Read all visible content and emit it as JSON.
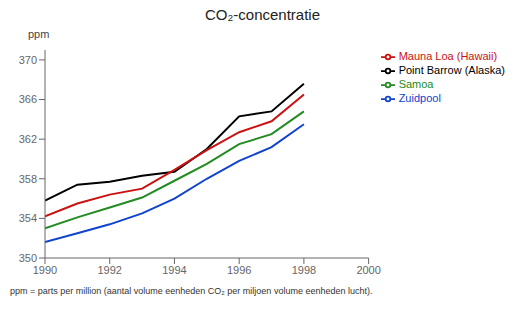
{
  "chart_data": {
    "type": "line",
    "title": "CO₂-concentratie",
    "ylabel": "ppm",
    "annotations": [
      "ppm = parts per million (aantal volume eenheden CO₂ per miljoen volume eenheden lucht)."
    ],
    "x": [
      1990,
      1991,
      1992,
      1993,
      1994,
      1995,
      1996,
      1997,
      1998
    ],
    "xlim": [
      1990,
      2000
    ],
    "xticks": [
      1990,
      1992,
      1994,
      1996,
      1998,
      2000
    ],
    "ylim": [
      350,
      371
    ],
    "yticks": [
      350,
      354,
      358,
      362,
      366,
      370
    ],
    "grid": false,
    "legend": "right",
    "series": [
      {
        "name": "Point Barrow (Alaska)",
        "color": "#000000",
        "values": [
          355.8,
          357.4,
          357.7,
          358.3,
          358.7,
          361.0,
          364.3,
          364.8,
          367.6
        ]
      },
      {
        "name": "Mauna Loa (Hawaii)",
        "color": "#cc1111",
        "values": [
          354.2,
          355.5,
          356.4,
          357.0,
          358.9,
          360.9,
          362.7,
          363.8,
          366.5
        ]
      },
      {
        "name": "Samoa",
        "color": "#228B22",
        "values": [
          353.0,
          354.1,
          355.1,
          356.1,
          357.8,
          359.5,
          361.5,
          362.5,
          364.8
        ]
      },
      {
        "name": "Zuidpool",
        "color": "#1144cc",
        "values": [
          351.6,
          352.5,
          353.4,
          354.5,
          356.0,
          358.0,
          359.8,
          361.2,
          363.5
        ]
      }
    ]
  }
}
